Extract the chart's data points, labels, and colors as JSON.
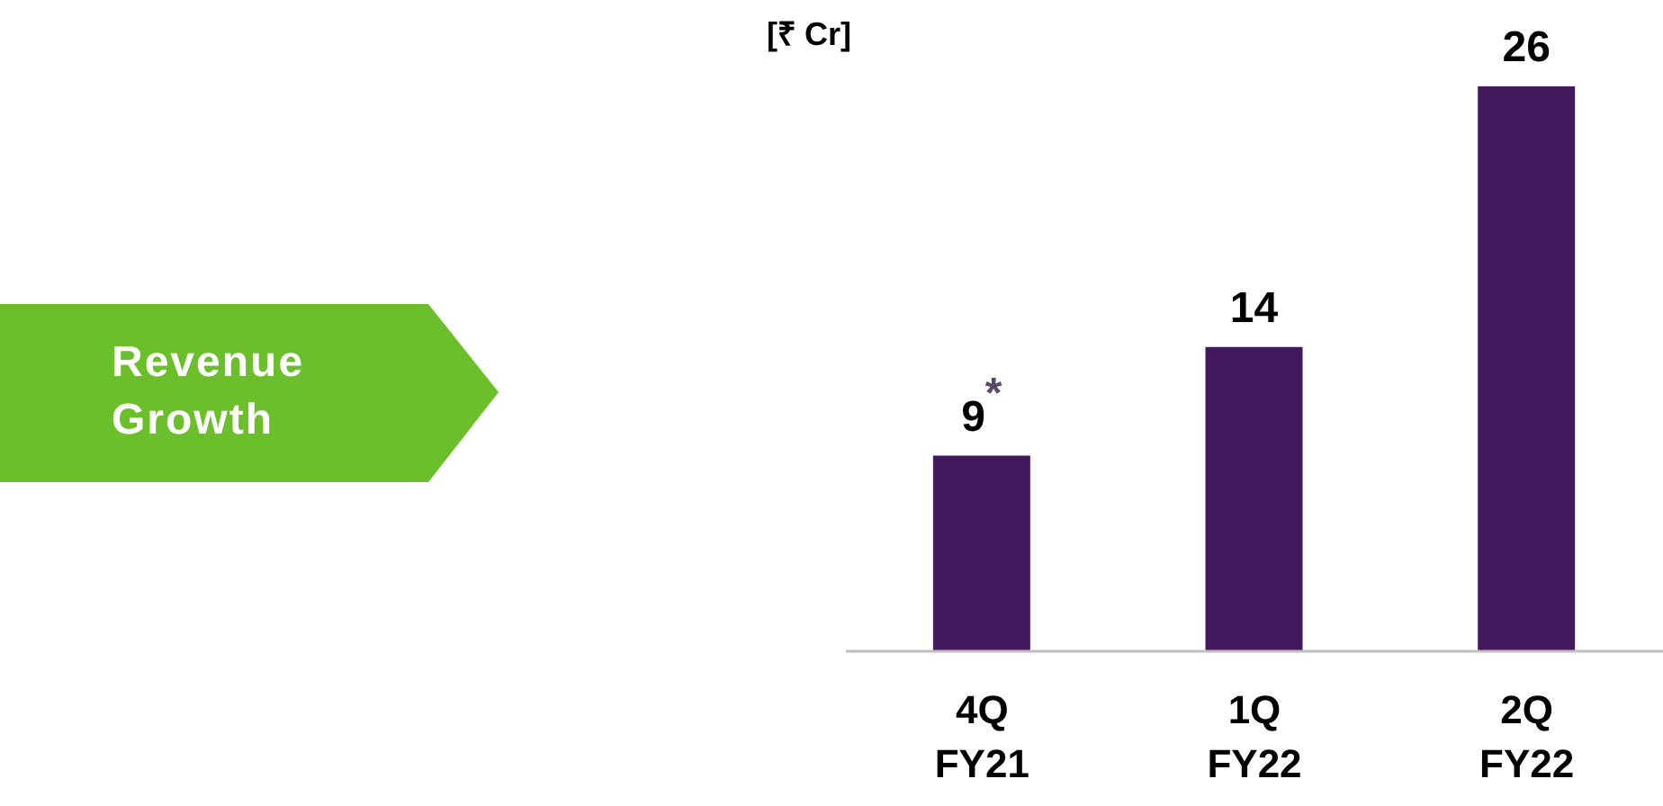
{
  "chart_data": {
    "type": "bar",
    "title": "Revenue Growth",
    "ylabel": "[₹ Cr]",
    "categories": [
      "4Q FY21",
      "1Q FY22",
      "2Q FY22"
    ],
    "values": [
      9,
      14,
      26
    ],
    "color": "#43185c",
    "value_labels": [
      "9$^{*}$",
      "14",
      "26"
    ]
  }
}
